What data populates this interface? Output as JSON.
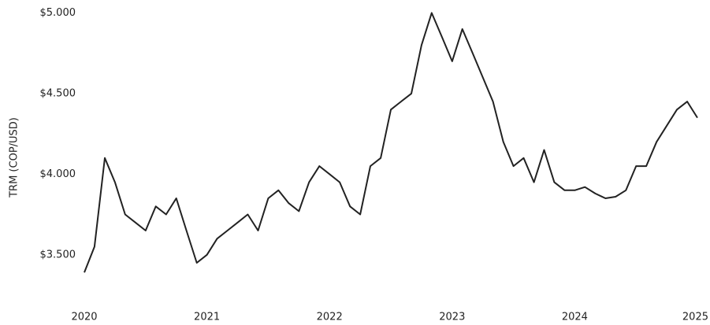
{
  "chart_data": {
    "type": "line",
    "y_label": "TRM (COP/USD)",
    "xlim": [
      2020,
      2025
    ],
    "xticks": [
      2020,
      2021,
      2022,
      2023,
      2024,
      2025
    ],
    "ylim": [
      3250,
      5080
    ],
    "yticks": [
      {
        "value": 3500,
        "label": "$3.500"
      },
      {
        "value": 4000,
        "label": "$4.000"
      },
      {
        "value": 4500,
        "label": "$4.500"
      },
      {
        "value": 5000,
        "label": "$5.000"
      }
    ],
    "grid": false,
    "series": [
      {
        "color": "#222222",
        "x": [
          2020,
          2020.083,
          2020.167,
          2020.25,
          2020.333,
          2020.417,
          2020.5,
          2020.583,
          2020.667,
          2020.75,
          2020.833,
          2020.917,
          2021,
          2021.083,
          2021.167,
          2021.25,
          2021.333,
          2021.417,
          2021.5,
          2021.583,
          2021.667,
          2021.75,
          2021.833,
          2021.917,
          2022,
          2022.083,
          2022.167,
          2022.25,
          2022.333,
          2022.417,
          2022.5,
          2022.583,
          2022.667,
          2022.75,
          2022.833,
          2022.917,
          2023,
          2023.083,
          2023.167,
          2023.25,
          2023.333,
          2023.417,
          2023.5,
          2023.583,
          2023.667,
          2023.75,
          2023.833,
          2023.917,
          2024,
          2024.083,
          2024.167,
          2024.25,
          2024.333,
          2024.417,
          2024.5,
          2024.583,
          2024.667,
          2024.75,
          2024.833,
          2024.917,
          2025
        ],
        "values": [
          3390,
          3550,
          4100,
          3950,
          3750,
          3700,
          3650,
          3800,
          3750,
          3850,
          3650,
          3450,
          3500,
          3600,
          3650,
          3700,
          3750,
          3650,
          3850,
          3900,
          3820,
          3770,
          3950,
          4050,
          4000,
          3950,
          3800,
          3750,
          4050,
          4100,
          4400,
          4450,
          4500,
          4800,
          5000,
          4850,
          4700,
          4900,
          4750,
          4600,
          4450,
          4200,
          4050,
          4100,
          3950,
          4150,
          3950,
          3900,
          3900,
          3920,
          3880,
          3850,
          3860,
          3900,
          4050,
          4050,
          4200,
          4300,
          4400,
          4450,
          4350
        ]
      }
    ]
  }
}
